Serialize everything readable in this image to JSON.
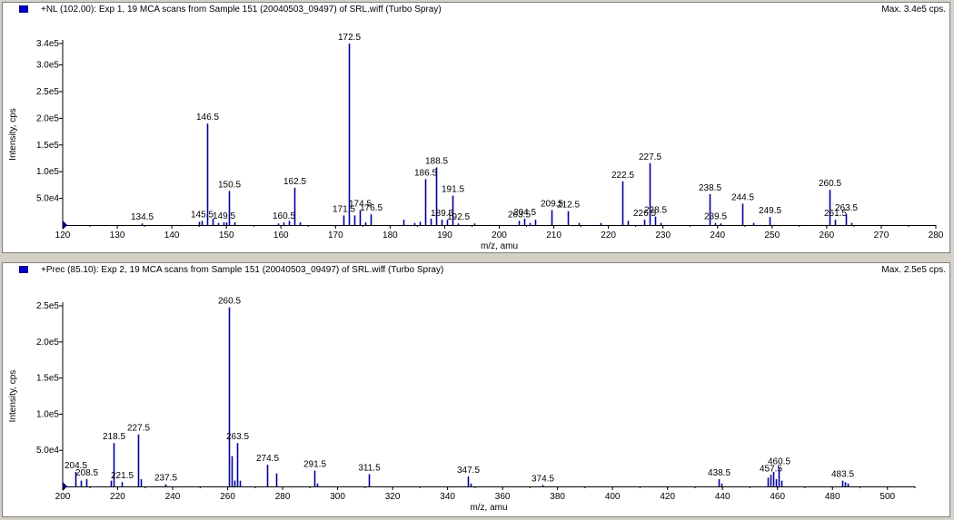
{
  "chart_data": [
    {
      "type": "bar",
      "header_title": "+NL (102.00): Exp 1, 19 MCA scans from Sample 151 (20040503_09497) of SRL.wiff (Turbo Spray)",
      "max_label": "Max. 3.4e5 cps.",
      "xlabel": "m/z, amu",
      "ylabel": "Intensity, cps",
      "xlim": [
        120,
        280
      ],
      "ylim": [
        0,
        340000
      ],
      "x_ticks": [
        120,
        130,
        140,
        150,
        160,
        170,
        180,
        190,
        200,
        210,
        220,
        230,
        240,
        250,
        260,
        270,
        280
      ],
      "y_ticks": [
        {
          "value": 50000,
          "label": "5.0e4"
        },
        {
          "value": 100000,
          "label": "1.0e5"
        },
        {
          "value": 150000,
          "label": "1.5e5"
        },
        {
          "value": 200000,
          "label": "2.0e5"
        },
        {
          "value": 250000,
          "label": "2.5e5"
        },
        {
          "value": 300000,
          "label": "3.0e5"
        },
        {
          "value": 340000,
          "label": "3.4e5"
        }
      ],
      "peaks": [
        {
          "x": 134.5,
          "y": 3000,
          "label": "134.5"
        },
        {
          "x": 145.5,
          "y": 8000,
          "label": "145.5"
        },
        {
          "x": 146.5,
          "y": 190000,
          "label": "146.5"
        },
        {
          "x": 149.5,
          "y": 5000,
          "label": "149.5"
        },
        {
          "x": 150.5,
          "y": 64000,
          "label": "150.5"
        },
        {
          "x": 160.5,
          "y": 5000,
          "label": "160.5"
        },
        {
          "x": 162.5,
          "y": 70000,
          "label": "162.5"
        },
        {
          "x": 171.5,
          "y": 18000,
          "label": "171.5"
        },
        {
          "x": 172.5,
          "y": 340000,
          "label": "172.5"
        },
        {
          "x": 174.5,
          "y": 28000,
          "label": "174.5"
        },
        {
          "x": 176.5,
          "y": 20000,
          "label": "176.5"
        },
        {
          "x": 186.5,
          "y": 86000,
          "label": "186.5"
        },
        {
          "x": 188.5,
          "y": 108000,
          "label": "188.5"
        },
        {
          "x": 189.5,
          "y": 10000,
          "label": "189.5"
        },
        {
          "x": 191.5,
          "y": 55000,
          "label": "191.5"
        },
        {
          "x": 192.5,
          "y": 3000,
          "label": "192.5"
        },
        {
          "x": 203.5,
          "y": 8000,
          "label": "203.5"
        },
        {
          "x": 204.5,
          "y": 12000,
          "label": "204.5"
        },
        {
          "x": 209.5,
          "y": 28000,
          "label": "209.5"
        },
        {
          "x": 212.5,
          "y": 26000,
          "label": "212.5"
        },
        {
          "x": 222.5,
          "y": 82000,
          "label": "222.5"
        },
        {
          "x": 226.5,
          "y": 10000,
          "label": "226.5"
        },
        {
          "x": 227.5,
          "y": 116000,
          "label": "227.5"
        },
        {
          "x": 228.5,
          "y": 16000,
          "label": "228.5"
        },
        {
          "x": 238.5,
          "y": 58000,
          "label": "238.5"
        },
        {
          "x": 239.5,
          "y": 4000,
          "label": "239.5"
        },
        {
          "x": 244.5,
          "y": 40000,
          "label": "244.5"
        },
        {
          "x": 249.5,
          "y": 15000,
          "label": "249.5"
        },
        {
          "x": 260.5,
          "y": 66000,
          "label": "260.5"
        },
        {
          "x": 261.5,
          "y": 10000,
          "label": "261.5"
        },
        {
          "x": 263.5,
          "y": 20000,
          "label": "263.5"
        },
        {
          "x": 145.0,
          "y": 6000
        },
        {
          "x": 147.5,
          "y": 12000
        },
        {
          "x": 148.5,
          "y": 4000
        },
        {
          "x": 150.0,
          "y": 5000
        },
        {
          "x": 151.5,
          "y": 5000
        },
        {
          "x": 159.5,
          "y": 3000
        },
        {
          "x": 161.5,
          "y": 8000
        },
        {
          "x": 163.5,
          "y": 5000
        },
        {
          "x": 173.5,
          "y": 18000
        },
        {
          "x": 175.5,
          "y": 5000
        },
        {
          "x": 182.5,
          "y": 10000
        },
        {
          "x": 184.5,
          "y": 4000
        },
        {
          "x": 185.5,
          "y": 6000
        },
        {
          "x": 187.5,
          "y": 12000
        },
        {
          "x": 190.5,
          "y": 10000
        },
        {
          "x": 195.5,
          "y": 3000
        },
        {
          "x": 205.5,
          "y": 4000
        },
        {
          "x": 206.5,
          "y": 10000
        },
        {
          "x": 214.5,
          "y": 4000
        },
        {
          "x": 218.5,
          "y": 4000
        },
        {
          "x": 223.5,
          "y": 8000
        },
        {
          "x": 229.5,
          "y": 4000
        },
        {
          "x": 240.5,
          "y": 3000
        },
        {
          "x": 246.5,
          "y": 4000
        },
        {
          "x": 264.5,
          "y": 4000
        }
      ]
    },
    {
      "type": "bar",
      "header_title": "+Prec (85.10): Exp 2, 19 MCA scans from Sample 151 (20040503_09497) of SRL.wiff (Turbo Spray)",
      "max_label": "Max. 2.5e5 cps.",
      "xlabel": "m/z, amu",
      "ylabel": "Intensity, cps",
      "xlim": [
        200,
        510
      ],
      "ylim": [
        0,
        250000
      ],
      "x_ticks": [
        200,
        220,
        240,
        260,
        280,
        300,
        320,
        340,
        360,
        380,
        400,
        420,
        440,
        460,
        480,
        500
      ],
      "y_ticks": [
        {
          "value": 50000,
          "label": "5.0e4"
        },
        {
          "value": 100000,
          "label": "1.0e5"
        },
        {
          "value": 150000,
          "label": "1.5e5"
        },
        {
          "value": 200000,
          "label": "2.0e5"
        },
        {
          "value": 250000,
          "label": "2.5e5"
        }
      ],
      "peaks": [
        {
          "x": 204.5,
          "y": 20000,
          "label": "204.5"
        },
        {
          "x": 208.5,
          "y": 10000,
          "label": "208.5"
        },
        {
          "x": 218.5,
          "y": 60000,
          "label": "218.5"
        },
        {
          "x": 221.5,
          "y": 6000,
          "label": "221.5"
        },
        {
          "x": 227.5,
          "y": 72000,
          "label": "227.5"
        },
        {
          "x": 237.5,
          "y": 3000,
          "label": "237.5"
        },
        {
          "x": 260.5,
          "y": 248000,
          "label": "260.5"
        },
        {
          "x": 263.5,
          "y": 60000,
          "label": "263.5"
        },
        {
          "x": 274.5,
          "y": 30000,
          "label": "274.5"
        },
        {
          "x": 291.5,
          "y": 22000,
          "label": "291.5"
        },
        {
          "x": 311.5,
          "y": 17000,
          "label": "311.5"
        },
        {
          "x": 347.5,
          "y": 14000,
          "label": "347.5"
        },
        {
          "x": 374.5,
          "y": 2000,
          "label": "374.5"
        },
        {
          "x": 438.5,
          "y": 10000,
          "label": "438.5"
        },
        {
          "x": 457.5,
          "y": 16000,
          "label": "457.5"
        },
        {
          "x": 460.5,
          "y": 26000,
          "label": "460.5"
        },
        {
          "x": 483.5,
          "y": 8000,
          "label": "483.5"
        },
        {
          "x": 206.5,
          "y": 8000
        },
        {
          "x": 217.5,
          "y": 8000
        },
        {
          "x": 228.5,
          "y": 10000
        },
        {
          "x": 261.5,
          "y": 42000
        },
        {
          "x": 262.5,
          "y": 8000
        },
        {
          "x": 264.5,
          "y": 8000
        },
        {
          "x": 277.5,
          "y": 18000
        },
        {
          "x": 292.5,
          "y": 4000
        },
        {
          "x": 348.5,
          "y": 4000
        },
        {
          "x": 439.5,
          "y": 4000
        },
        {
          "x": 456.5,
          "y": 12000
        },
        {
          "x": 458.5,
          "y": 20000
        },
        {
          "x": 459.5,
          "y": 10000
        },
        {
          "x": 461.5,
          "y": 8000
        },
        {
          "x": 484.5,
          "y": 6000
        },
        {
          "x": 485.5,
          "y": 4000
        }
      ]
    }
  ]
}
